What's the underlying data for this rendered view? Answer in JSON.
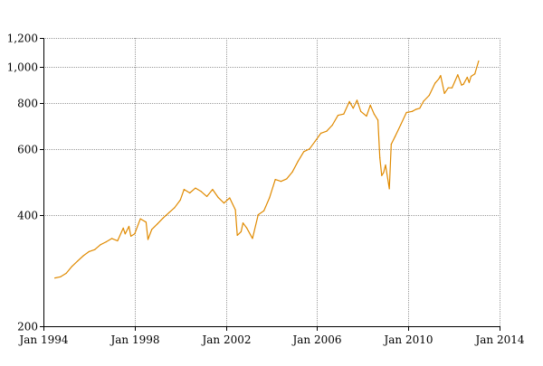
{
  "chart_data": {
    "type": "line",
    "title": "",
    "xlabel": "",
    "ylabel": "",
    "y_scale": "log",
    "grid": true,
    "legend": "none",
    "xlim": [
      "1994-01",
      "2014-01"
    ],
    "ylim": [
      200,
      1200
    ],
    "x_ticks": [
      {
        "value": "1994-01",
        "label": "Jan 1994"
      },
      {
        "value": "1998-01",
        "label": "Jan 1998"
      },
      {
        "value": "2002-01",
        "label": "Jan 2002"
      },
      {
        "value": "2006-01",
        "label": "Jan 2006"
      },
      {
        "value": "2010-01",
        "label": "Jan 2010"
      },
      {
        "value": "2014-01",
        "label": "Jan 2014"
      }
    ],
    "y_ticks": [
      {
        "value": 200,
        "label": "200"
      },
      {
        "value": 400,
        "label": "400"
      },
      {
        "value": 600,
        "label": "600"
      },
      {
        "value": 800,
        "label": "800"
      },
      {
        "value": 1000,
        "label": "1,000"
      },
      {
        "value": 1200,
        "label": "1,200"
      }
    ],
    "series": [
      {
        "color": "#e08a00",
        "x": [
          "1994-07",
          "1994-10",
          "1995-01",
          "1995-04",
          "1995-07",
          "1995-10",
          "1996-01",
          "1996-04",
          "1996-07",
          "1996-10",
          "1997-01",
          "1997-04",
          "1997-07",
          "1997-08",
          "1997-10",
          "1997-11",
          "1998-01",
          "1998-04",
          "1998-07",
          "1998-08",
          "1998-10",
          "1999-01",
          "1999-04",
          "1999-07",
          "1999-10",
          "2000-01",
          "2000-03",
          "2000-06",
          "2000-09",
          "2000-12",
          "2001-03",
          "2001-06",
          "2001-09",
          "2001-12",
          "2002-03",
          "2002-06",
          "2002-07",
          "2002-09",
          "2002-10",
          "2002-12",
          "2003-03",
          "2003-06",
          "2003-09",
          "2003-12",
          "2004-03",
          "2004-06",
          "2004-09",
          "2004-12",
          "2005-03",
          "2005-06",
          "2005-09",
          "2005-12",
          "2006-03",
          "2006-06",
          "2006-09",
          "2006-12",
          "2007-03",
          "2007-06",
          "2007-08",
          "2007-10",
          "2007-12",
          "2008-03",
          "2008-05",
          "2008-07",
          "2008-09",
          "2008-10",
          "2008-11",
          "2008-12",
          "2009-01",
          "2009-03",
          "2009-04",
          "2009-06",
          "2009-09",
          "2009-12",
          "2010-03",
          "2010-05",
          "2010-07",
          "2010-09",
          "2010-12",
          "2011-03",
          "2011-05",
          "2011-06",
          "2011-08",
          "2011-10",
          "2011-12",
          "2012-03",
          "2012-05",
          "2012-06",
          "2012-08",
          "2012-09",
          "2012-10",
          "2012-12",
          "2013-02"
        ],
        "y": [
          270,
          272,
          278,
          290,
          300,
          310,
          318,
          322,
          332,
          338,
          345,
          340,
          368,
          355,
          372,
          350,
          355,
          390,
          382,
          343,
          365,
          378,
          392,
          405,
          418,
          438,
          468,
          458,
          472,
          462,
          448,
          468,
          445,
          430,
          444,
          412,
          352,
          360,
          380,
          368,
          345,
          400,
          410,
          445,
          498,
          492,
          500,
          522,
          558,
          592,
          602,
          632,
          664,
          672,
          698,
          742,
          748,
          808,
          775,
          815,
          760,
          738,
          790,
          748,
          720,
          570,
          510,
          520,
          545,
          470,
          620,
          650,
          700,
          755,
          760,
          770,
          775,
          810,
          840,
          905,
          930,
          950,
          850,
          880,
          880,
          955,
          895,
          900,
          940,
          910,
          945,
          960,
          1040
        ]
      }
    ]
  }
}
